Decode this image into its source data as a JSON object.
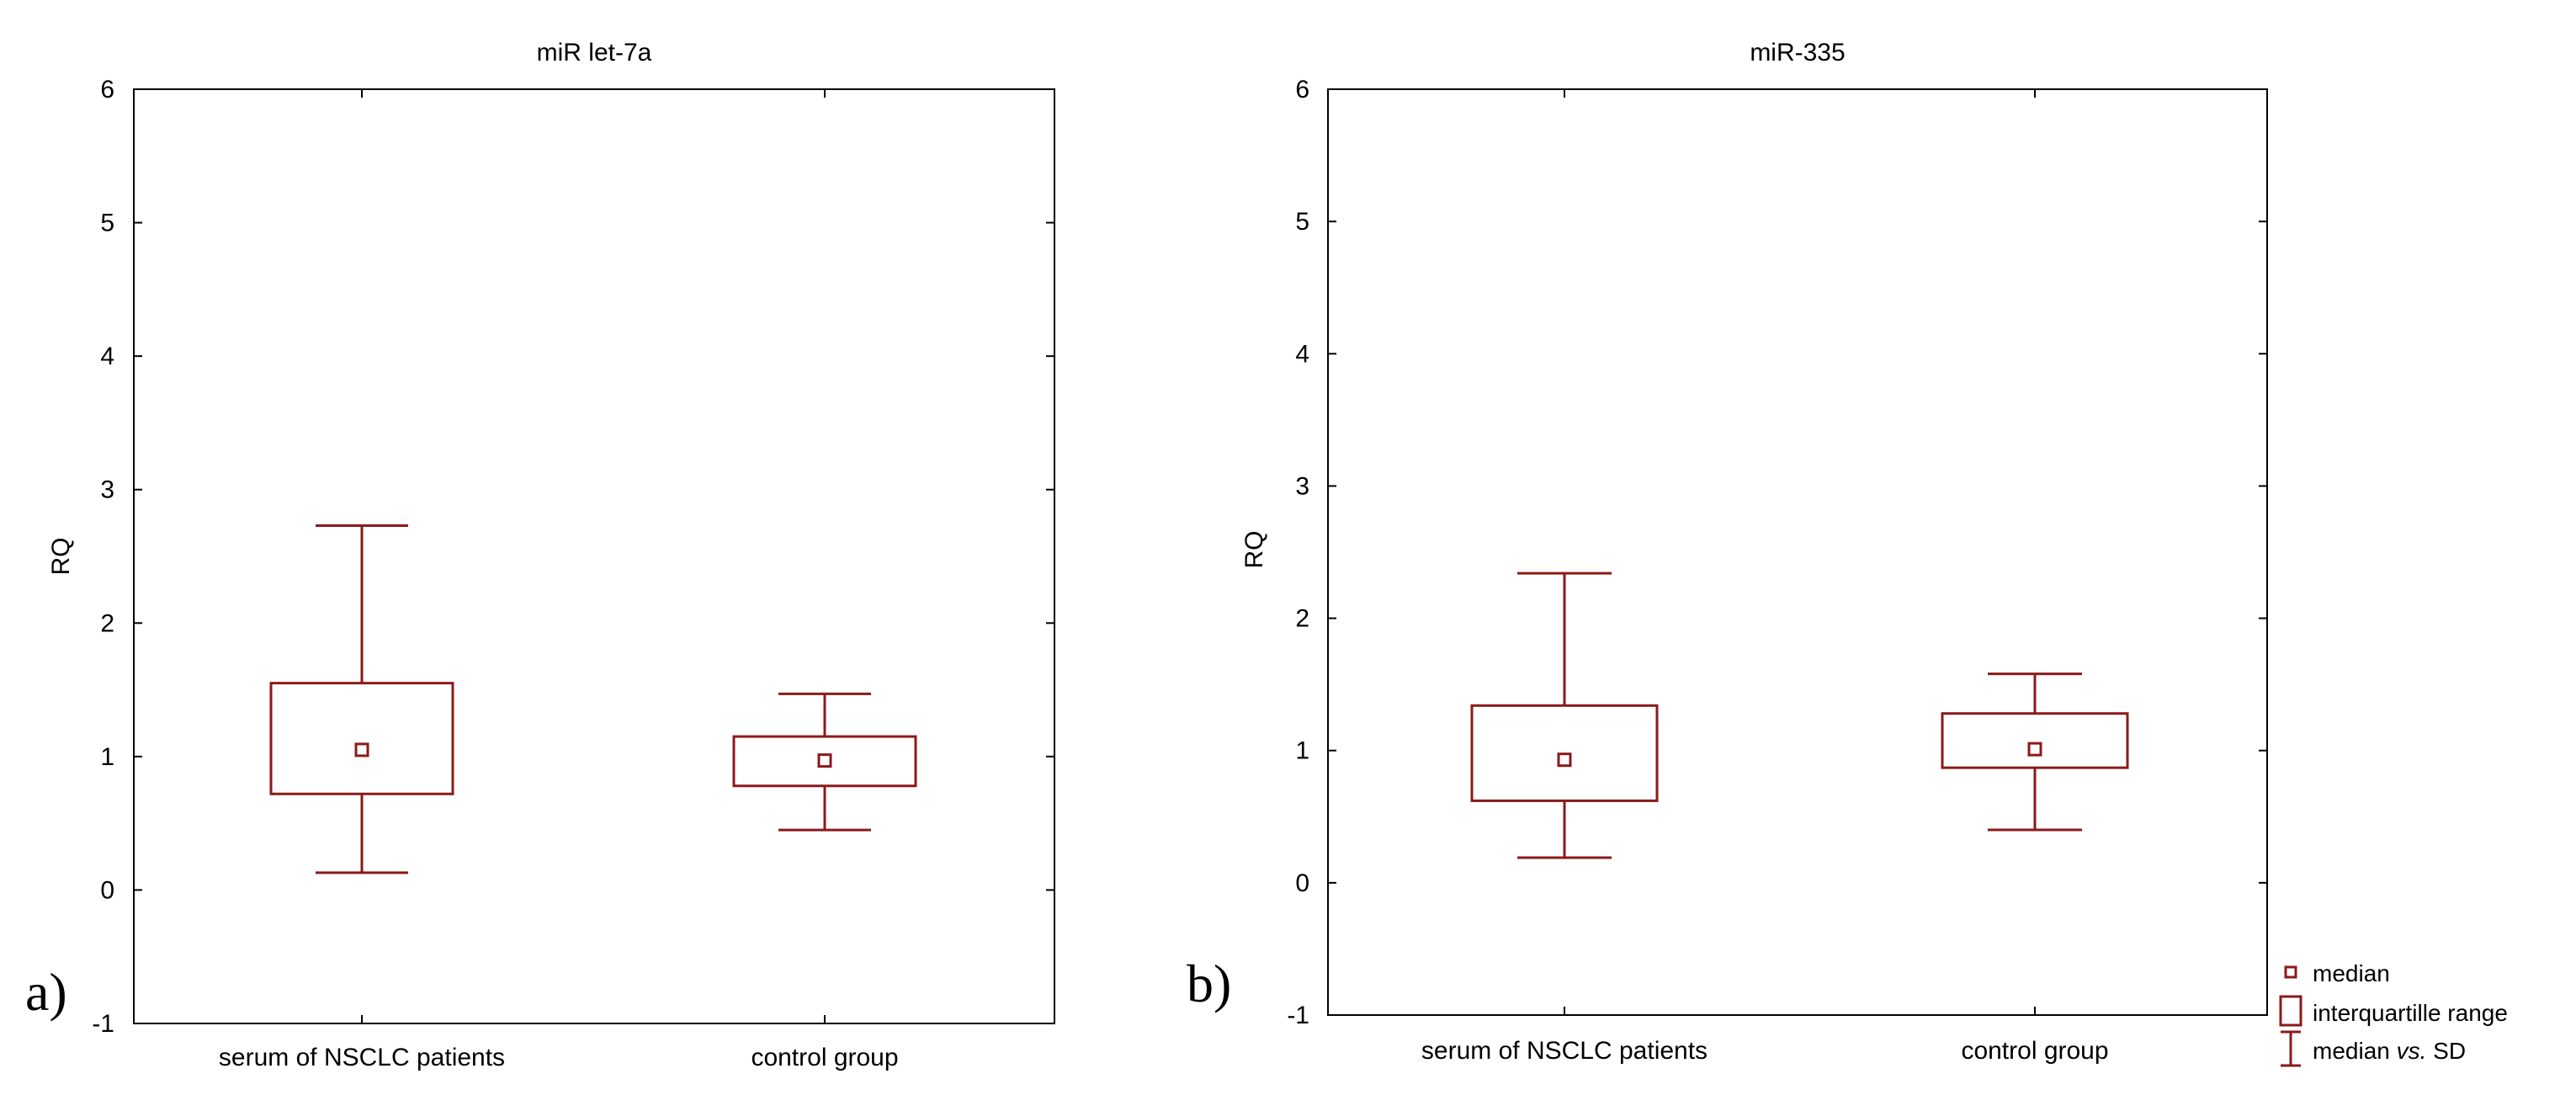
{
  "colors": {
    "box": "#8b1a1a",
    "axis": "#000000",
    "background": "#ffffff"
  },
  "legend": {
    "median": "median",
    "iqr": "interquartille range",
    "sd_prefix": "median ",
    "sd_italic": "vs.",
    "sd_suffix": " SD"
  },
  "chart_data": [
    {
      "type": "box",
      "panel_label": "a)",
      "title": "miR let-7a",
      "ylabel": "RQ",
      "xlabel": "",
      "ylim": [
        -1,
        6
      ],
      "yticks": [
        -1,
        0,
        1,
        2,
        3,
        4,
        5,
        6
      ],
      "grid": false,
      "categories": [
        "serum of NSCLC patients",
        "control group"
      ],
      "boxes": [
        {
          "category": "serum of NSCLC patients",
          "median": 1.05,
          "q1": 0.72,
          "q3": 1.55,
          "whisker_low": 0.13,
          "whisker_high": 2.73
        },
        {
          "category": "control group",
          "median": 0.97,
          "q1": 0.78,
          "q3": 1.15,
          "whisker_low": 0.45,
          "whisker_high": 1.47
        }
      ]
    },
    {
      "type": "box",
      "panel_label": "b)",
      "title": "miR-335",
      "ylabel": "RQ",
      "xlabel": "",
      "ylim": [
        -1,
        6
      ],
      "yticks": [
        -1,
        0,
        1,
        2,
        3,
        4,
        5,
        6
      ],
      "grid": false,
      "categories": [
        "serum of NSCLC patients",
        "control group"
      ],
      "boxes": [
        {
          "category": "serum of NSCLC patients",
          "median": 0.93,
          "q1": 0.62,
          "q3": 1.34,
          "whisker_low": 0.19,
          "whisker_high": 2.34
        },
        {
          "category": "control group",
          "median": 1.01,
          "q1": 0.87,
          "q3": 1.28,
          "whisker_low": 0.4,
          "whisker_high": 1.58
        }
      ]
    }
  ]
}
